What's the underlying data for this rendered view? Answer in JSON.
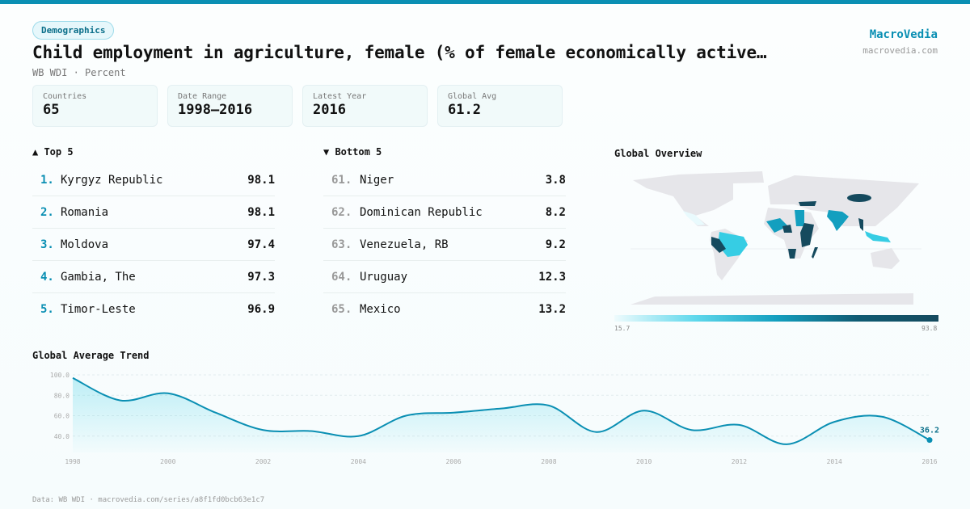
{
  "header": {
    "category": "Demographics",
    "title": "Child employment in agriculture, female (% of female economically active…",
    "subtitle": "WB WDI · Percent",
    "brand": "MacroVedia",
    "brand_url": "macrovedia.com"
  },
  "stats": [
    {
      "label": "Countries",
      "value": "65"
    },
    {
      "label": "Date Range",
      "value": "1998–2016"
    },
    {
      "label": "Latest Year",
      "value": "2016"
    },
    {
      "label": "Global Avg",
      "value": "61.2"
    }
  ],
  "top5": {
    "title": "▲ Top 5",
    "items": [
      {
        "rank": "1.",
        "country": "Kyrgyz Republic",
        "value": "98.1"
      },
      {
        "rank": "2.",
        "country": "Romania",
        "value": "98.1"
      },
      {
        "rank": "3.",
        "country": "Moldova",
        "value": "97.4"
      },
      {
        "rank": "4.",
        "country": "Gambia, The",
        "value": "97.3"
      },
      {
        "rank": "5.",
        "country": "Timor-Leste",
        "value": "96.9"
      }
    ]
  },
  "bottom5": {
    "title": "▼ Bottom 5",
    "items": [
      {
        "rank": "61.",
        "country": "Niger",
        "value": "3.8"
      },
      {
        "rank": "62.",
        "country": "Dominican Republic",
        "value": "8.2"
      },
      {
        "rank": "63.",
        "country": "Venezuela, RB",
        "value": "9.2"
      },
      {
        "rank": "64.",
        "country": "Uruguay",
        "value": "12.3"
      },
      {
        "rank": "65.",
        "country": "Mexico",
        "value": "13.2"
      }
    ]
  },
  "map": {
    "title": "Global Overview",
    "legend_min": "15.7",
    "legend_max": "93.8",
    "colors": {
      "land": "#e6e6ea",
      "low": "#effbfd",
      "mid": "#36cde4",
      "high": "#154a5e"
    }
  },
  "chart_data": {
    "type": "area",
    "title": "Global Average Trend",
    "x": [
      1998,
      1999,
      2000,
      2001,
      2002,
      2003,
      2004,
      2005,
      2006,
      2007,
      2008,
      2009,
      2010,
      2011,
      2012,
      2013,
      2014,
      2015,
      2016
    ],
    "values": [
      97,
      75,
      82,
      63,
      46,
      45,
      40,
      60,
      63,
      67,
      70,
      44,
      65,
      46,
      51,
      32,
      54,
      59,
      36.2
    ],
    "ylim": [
      24,
      100
    ],
    "yticks": [
      "100.0",
      "80.0",
      "60.0",
      "40.0"
    ],
    "xticks": [
      "1998",
      "2000",
      "2002",
      "2004",
      "2006",
      "2008",
      "2010",
      "2012",
      "2014",
      "2016"
    ],
    "last_label": "36.2",
    "color": "#0a8fb3",
    "grid": true
  },
  "footer": "Data: WB WDI · macrovedia.com/series/a8f1fd0bcb63e1c7"
}
